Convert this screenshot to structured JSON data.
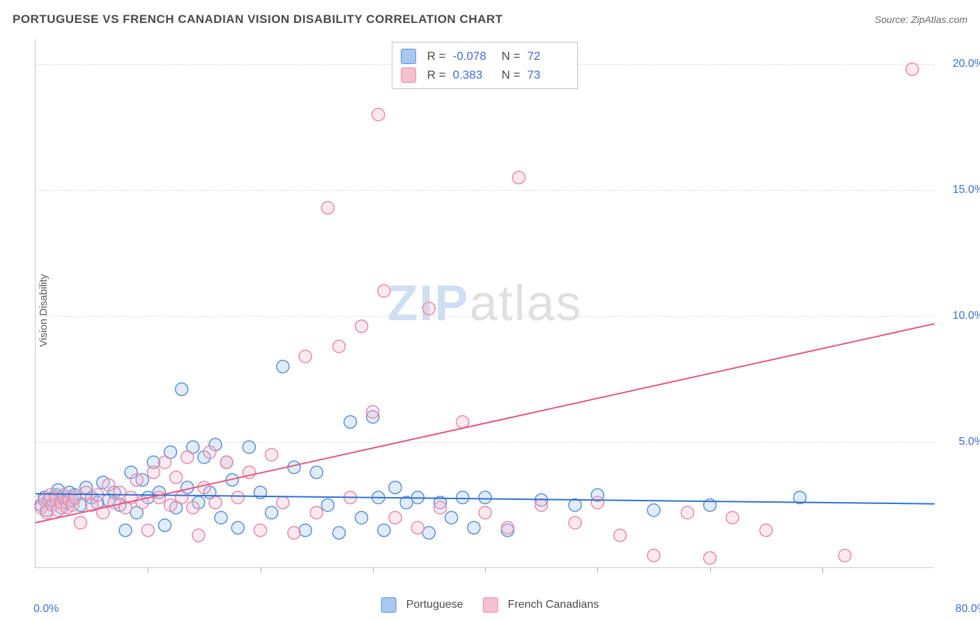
{
  "title": "PORTUGUESE VS FRENCH CANADIAN VISION DISABILITY CORRELATION CHART",
  "source": "Source: ZipAtlas.com",
  "y_axis_label": "Vision Disability",
  "watermark_a": "ZIP",
  "watermark_b": "atlas",
  "chart": {
    "type": "scatter",
    "xlim": [
      0,
      80
    ],
    "ylim": [
      0,
      21
    ],
    "x_ticks_labeled": {
      "0": "0.0%",
      "80": "80.0%"
    },
    "x_tick_positions_minor": [
      10,
      20,
      30,
      40,
      50,
      60,
      70
    ],
    "y_gridlines": [
      5,
      10,
      15,
      20
    ],
    "y_tick_labels": {
      "5": "5.0%",
      "10": "10.0%",
      "15": "15.0%",
      "20": "20.0%"
    },
    "background_color": "#ffffff",
    "grid_color": "#dcdcdc",
    "axis_color": "#c8c8c8",
    "tick_label_color": "#3a6fd8",
    "axis_label_color": "#5a5a5a",
    "marker_radius": 9,
    "marker_stroke_width": 1.5,
    "marker_fill_opacity": 0.35,
    "line_width": 2,
    "series": [
      {
        "name": "Portuguese",
        "color_stroke": "#5a8fd8",
        "color_fill": "#a8c8ef",
        "line_color": "#2a6fd8",
        "trend": {
          "x1": 0,
          "y1": 2.95,
          "x2": 80,
          "y2": 2.55
        },
        "points": [
          [
            0.5,
            2.5
          ],
          [
            0.8,
            2.8
          ],
          [
            1.0,
            2.3
          ],
          [
            1.2,
            2.7
          ],
          [
            1.5,
            2.5
          ],
          [
            1.8,
            2.9
          ],
          [
            2.0,
            3.1
          ],
          [
            2.3,
            2.4
          ],
          [
            2.5,
            2.8
          ],
          [
            2.8,
            2.6
          ],
          [
            3.0,
            3.0
          ],
          [
            3.3,
            2.7
          ],
          [
            3.5,
            2.9
          ],
          [
            4.0,
            2.5
          ],
          [
            4.5,
            3.2
          ],
          [
            5.0,
            2.8
          ],
          [
            5.5,
            2.6
          ],
          [
            6.0,
            3.4
          ],
          [
            6.5,
            2.7
          ],
          [
            7.0,
            3.0
          ],
          [
            7.5,
            2.5
          ],
          [
            8.0,
            1.5
          ],
          [
            8.5,
            3.8
          ],
          [
            9.0,
            2.2
          ],
          [
            9.5,
            3.5
          ],
          [
            10.0,
            2.8
          ],
          [
            10.5,
            4.2
          ],
          [
            11.0,
            3.0
          ],
          [
            11.5,
            1.7
          ],
          [
            12.0,
            4.6
          ],
          [
            12.5,
            2.4
          ],
          [
            13.0,
            7.1
          ],
          [
            13.5,
            3.2
          ],
          [
            14.0,
            4.8
          ],
          [
            14.5,
            2.6
          ],
          [
            15.0,
            4.4
          ],
          [
            15.5,
            3.0
          ],
          [
            16.0,
            4.9
          ],
          [
            16.5,
            2.0
          ],
          [
            17.0,
            4.2
          ],
          [
            17.5,
            3.5
          ],
          [
            18.0,
            1.6
          ],
          [
            19.0,
            4.8
          ],
          [
            20.0,
            3.0
          ],
          [
            21.0,
            2.2
          ],
          [
            22.0,
            8.0
          ],
          [
            23.0,
            4.0
          ],
          [
            24.0,
            1.5
          ],
          [
            25.0,
            3.8
          ],
          [
            26.0,
            2.5
          ],
          [
            27.0,
            1.4
          ],
          [
            28.0,
            5.8
          ],
          [
            29.0,
            2.0
          ],
          [
            30.0,
            6.0
          ],
          [
            30.5,
            2.8
          ],
          [
            31.0,
            1.5
          ],
          [
            32.0,
            3.2
          ],
          [
            33.0,
            2.6
          ],
          [
            34.0,
            2.8
          ],
          [
            35.0,
            1.4
          ],
          [
            36.0,
            2.6
          ],
          [
            37.0,
            2.0
          ],
          [
            38.0,
            2.8
          ],
          [
            39.0,
            1.6
          ],
          [
            40.0,
            2.8
          ],
          [
            42.0,
            1.5
          ],
          [
            45.0,
            2.7
          ],
          [
            48.0,
            2.5
          ],
          [
            50.0,
            2.9
          ],
          [
            55.0,
            2.3
          ],
          [
            60.0,
            2.5
          ],
          [
            68.0,
            2.8
          ]
        ]
      },
      {
        "name": "French Canadians",
        "color_stroke": "#e68aa8",
        "color_fill": "#f5c0d0",
        "line_color": "#e8537f",
        "trend": {
          "x1": 0,
          "y1": 1.8,
          "x2": 80,
          "y2": 9.7
        },
        "points": [
          [
            0.5,
            2.4
          ],
          [
            0.8,
            2.7
          ],
          [
            1.0,
            2.2
          ],
          [
            1.3,
            2.9
          ],
          [
            1.5,
            2.5
          ],
          [
            1.8,
            2.8
          ],
          [
            2.0,
            2.3
          ],
          [
            2.3,
            2.6
          ],
          [
            2.5,
            2.9
          ],
          [
            2.8,
            2.4
          ],
          [
            3.0,
            2.7
          ],
          [
            3.3,
            2.5
          ],
          [
            3.5,
            2.8
          ],
          [
            4.0,
            1.8
          ],
          [
            4.5,
            3.0
          ],
          [
            5.0,
            2.5
          ],
          [
            5.5,
            2.9
          ],
          [
            6.0,
            2.2
          ],
          [
            6.5,
            3.3
          ],
          [
            7.0,
            2.6
          ],
          [
            7.5,
            3.0
          ],
          [
            8.0,
            2.4
          ],
          [
            8.5,
            2.8
          ],
          [
            9.0,
            3.5
          ],
          [
            9.5,
            2.6
          ],
          [
            10.0,
            1.5
          ],
          [
            10.5,
            3.8
          ],
          [
            11.0,
            2.8
          ],
          [
            11.5,
            4.2
          ],
          [
            12.0,
            2.5
          ],
          [
            12.5,
            3.6
          ],
          [
            13.0,
            2.8
          ],
          [
            13.5,
            4.4
          ],
          [
            14.0,
            2.4
          ],
          [
            14.5,
            1.3
          ],
          [
            15.0,
            3.2
          ],
          [
            15.5,
            4.6
          ],
          [
            16.0,
            2.6
          ],
          [
            17.0,
            4.2
          ],
          [
            18.0,
            2.8
          ],
          [
            19.0,
            3.8
          ],
          [
            20.0,
            1.5
          ],
          [
            21.0,
            4.5
          ],
          [
            22.0,
            2.6
          ],
          [
            23.0,
            1.4
          ],
          [
            24.0,
            8.4
          ],
          [
            25.0,
            2.2
          ],
          [
            26.0,
            14.3
          ],
          [
            27.0,
            8.8
          ],
          [
            28.0,
            2.8
          ],
          [
            29.0,
            9.6
          ],
          [
            30.0,
            6.2
          ],
          [
            30.5,
            18.0
          ],
          [
            31.0,
            11.0
          ],
          [
            32.0,
            2.0
          ],
          [
            34.0,
            1.6
          ],
          [
            35.0,
            10.3
          ],
          [
            36.0,
            2.4
          ],
          [
            38.0,
            5.8
          ],
          [
            40.0,
            2.2
          ],
          [
            42.0,
            1.6
          ],
          [
            43.0,
            15.5
          ],
          [
            45.0,
            2.5
          ],
          [
            48.0,
            1.8
          ],
          [
            50.0,
            2.6
          ],
          [
            52.0,
            1.3
          ],
          [
            55.0,
            0.5
          ],
          [
            58.0,
            2.2
          ],
          [
            60.0,
            0.4
          ],
          [
            62.0,
            2.0
          ],
          [
            65.0,
            1.5
          ],
          [
            72.0,
            0.5
          ],
          [
            78.0,
            19.8
          ]
        ]
      }
    ]
  },
  "stats_legend": [
    {
      "swatch_fill": "#a8c8ef",
      "swatch_stroke": "#5a8fd8",
      "r_label": "R =",
      "r_value": "-0.078",
      "n_label": "N =",
      "n_value": "72"
    },
    {
      "swatch_fill": "#f5c0d0",
      "swatch_stroke": "#e68aa8",
      "r_label": "R =",
      "r_value": "0.383",
      "n_label": "N =",
      "n_value": "73"
    }
  ],
  "bottom_legend": [
    {
      "swatch_fill": "#a8c8ef",
      "swatch_stroke": "#5a8fd8",
      "label": "Portuguese"
    },
    {
      "swatch_fill": "#f5c0d0",
      "swatch_stroke": "#e68aa8",
      "label": "French Canadians"
    }
  ]
}
